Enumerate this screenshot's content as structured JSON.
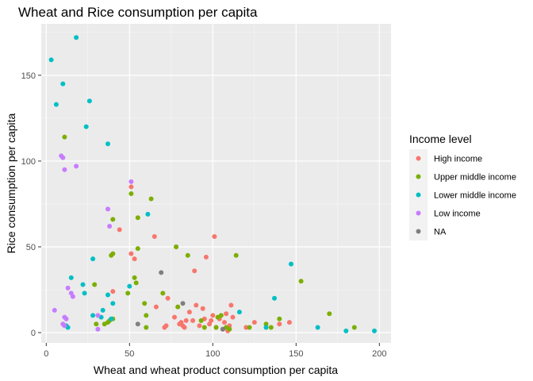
{
  "chart_data": {
    "type": "scatter",
    "title": "Wheat and Rice consumption per capita",
    "xlabel": "Wheat and wheat product consumption per capita",
    "ylabel": "Rice consumption per capita",
    "xlim": [
      -3,
      207
    ],
    "ylim": [
      -6,
      180
    ],
    "xticks": [
      0,
      50,
      100,
      150,
      200
    ],
    "yticks": [
      0,
      50,
      100,
      150
    ],
    "grid": true,
    "legend": {
      "title": "Income level",
      "placement": "right"
    },
    "series": [
      {
        "name": "High income",
        "color": "#F8766D",
        "points": [
          [
            51,
            85
          ],
          [
            44,
            60
          ],
          [
            65,
            56
          ],
          [
            101,
            56
          ],
          [
            51,
            46
          ],
          [
            53,
            43
          ],
          [
            96,
            44
          ],
          [
            89,
            36
          ],
          [
            78,
            50
          ],
          [
            40,
            24
          ],
          [
            66,
            15
          ],
          [
            73,
            20
          ],
          [
            77,
            9
          ],
          [
            80,
            5
          ],
          [
            82,
            4
          ],
          [
            84,
            7
          ],
          [
            86,
            12
          ],
          [
            90,
            16
          ],
          [
            92,
            4
          ],
          [
            94,
            14
          ],
          [
            95,
            8
          ],
          [
            98,
            5
          ],
          [
            100,
            10
          ],
          [
            102,
            3
          ],
          [
            104,
            8
          ],
          [
            106,
            2
          ],
          [
            108,
            11
          ],
          [
            109,
            1
          ],
          [
            110,
            4
          ],
          [
            111,
            16
          ],
          [
            112,
            9
          ],
          [
            71,
            3
          ],
          [
            72,
            4
          ],
          [
            88,
            7
          ],
          [
            120,
            3
          ],
          [
            125,
            6
          ],
          [
            140,
            5
          ],
          [
            146,
            6
          ],
          [
            81,
            6
          ],
          [
            83,
            3
          ],
          [
            107,
            6
          ],
          [
            99,
            7
          ]
        ]
      },
      {
        "name": "Upper middle income",
        "color": "#7CAE00",
        "points": [
          [
            11,
            114
          ],
          [
            51,
            81
          ],
          [
            63,
            78
          ],
          [
            78,
            50
          ],
          [
            39,
            45
          ],
          [
            55,
            49
          ],
          [
            40,
            46
          ],
          [
            55,
            67
          ],
          [
            40,
            66
          ],
          [
            53,
            32
          ],
          [
            54,
            29
          ],
          [
            85,
            45
          ],
          [
            114,
            45
          ],
          [
            153,
            30
          ],
          [
            29,
            28
          ],
          [
            38,
            7
          ],
          [
            40,
            8
          ],
          [
            37,
            6
          ],
          [
            30,
            5
          ],
          [
            35,
            5
          ],
          [
            49,
            23
          ],
          [
            59,
            17
          ],
          [
            60,
            10
          ],
          [
            60,
            3
          ],
          [
            70,
            23
          ],
          [
            79,
            15
          ],
          [
            93,
            7
          ],
          [
            95,
            3
          ],
          [
            105,
            10
          ],
          [
            108,
            3
          ],
          [
            110,
            2
          ],
          [
            122,
            3
          ],
          [
            132,
            5
          ],
          [
            135,
            3
          ],
          [
            140,
            8
          ],
          [
            170,
            11
          ],
          [
            185,
            3
          ],
          [
            102,
            3
          ],
          [
            103,
            9
          ]
        ]
      },
      {
        "name": "Lower middle income",
        "color": "#00BFC4",
        "points": [
          [
            3,
            159
          ],
          [
            18,
            172
          ],
          [
            10,
            145
          ],
          [
            6,
            133
          ],
          [
            26,
            135
          ],
          [
            24,
            120
          ],
          [
            37,
            110
          ],
          [
            61,
            69
          ],
          [
            28,
            43
          ],
          [
            147,
            40
          ],
          [
            15,
            32
          ],
          [
            22,
            28
          ],
          [
            23,
            23
          ],
          [
            37,
            22
          ],
          [
            40,
            17
          ],
          [
            34,
            13
          ],
          [
            39,
            8
          ],
          [
            28,
            10
          ],
          [
            33,
            9
          ],
          [
            12,
            4
          ],
          [
            13,
            3
          ],
          [
            137,
            20
          ],
          [
            163,
            3
          ],
          [
            180,
            1
          ],
          [
            197,
            1
          ],
          [
            116,
            12
          ],
          [
            132,
            3
          ],
          [
            50,
            27
          ]
        ]
      },
      {
        "name": "Low income",
        "color": "#C77CFF",
        "points": [
          [
            9,
            103
          ],
          [
            10,
            102
          ],
          [
            18,
            97
          ],
          [
            11,
            95
          ],
          [
            51,
            88
          ],
          [
            37,
            72
          ],
          [
            38,
            62
          ],
          [
            13,
            26
          ],
          [
            15,
            23
          ],
          [
            16,
            21
          ],
          [
            11,
            9
          ],
          [
            12,
            8
          ],
          [
            5,
            13
          ],
          [
            10,
            5
          ],
          [
            11,
            4
          ],
          [
            31,
            10
          ],
          [
            31,
            2
          ]
        ]
      },
      {
        "name": "NA",
        "color": "#7F7F7F",
        "points": [
          [
            69,
            35
          ],
          [
            55,
            5
          ],
          [
            82,
            17
          ],
          [
            106,
            2
          ]
        ]
      }
    ]
  }
}
